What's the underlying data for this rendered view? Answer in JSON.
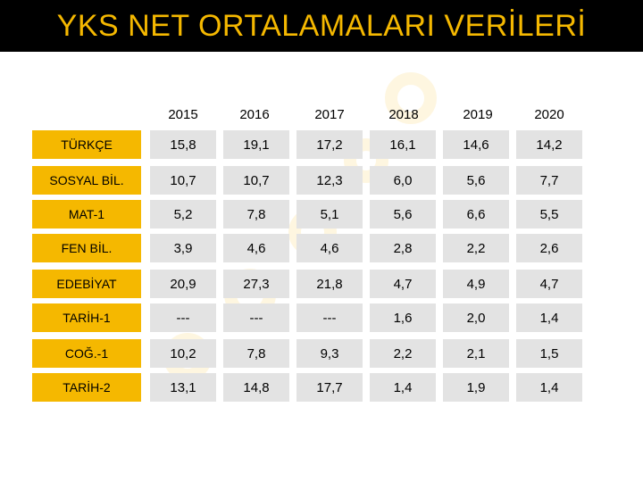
{
  "title": "YKS NET ORTALAMALARI VERİLERİ",
  "colors": {
    "accent": "#f5b800",
    "header_bg": "#000000",
    "cell_bg": "#e3e3e3"
  },
  "years": [
    "2015",
    "2016",
    "2017",
    "2018",
    "2019",
    "2020"
  ],
  "rows": [
    {
      "label": "TÜRKÇE",
      "values": [
        "15,8",
        "19,1",
        "17,2",
        "16,1",
        "14,6",
        "14,2"
      ]
    },
    {
      "label": "SOSYAL BİL.",
      "values": [
        "10,7",
        "10,7",
        "12,3",
        "6,0",
        "5,6",
        "7,7"
      ]
    },
    {
      "label": "MAT-1",
      "values": [
        "5,2",
        "7,8",
        "5,1",
        "5,6",
        "6,6",
        "5,5"
      ]
    },
    {
      "label": "FEN BİL.",
      "values": [
        "3,9",
        "4,6",
        "4,6",
        "2,8",
        "2,2",
        "2,6"
      ]
    },
    {
      "label": "EDEBİYAT",
      "values": [
        "20,9",
        "27,3",
        "21,8",
        "4,7",
        "4,9",
        "4,7"
      ]
    },
    {
      "label": "TARİH-1",
      "values": [
        "---",
        "---",
        "---",
        "1,6",
        "2,0",
        "1,4"
      ]
    },
    {
      "label": "COĞ.-1",
      "values": [
        "10,2",
        "7,8",
        "9,3",
        "2,2",
        "2,1",
        "1,5"
      ]
    },
    {
      "label": "TARİH-2",
      "values": [
        "13,1",
        "14,8",
        "17,7",
        "1,4",
        "1,9",
        "1,4"
      ]
    }
  ]
}
